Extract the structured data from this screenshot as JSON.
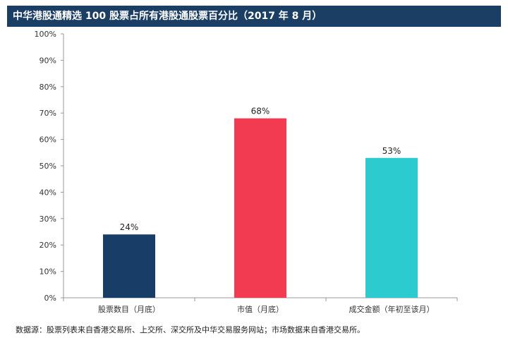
{
  "chart_data": {
    "type": "bar",
    "title": "中华港股通精选 100 股票占所有港股通股票百分比（2017 年 8 月）",
    "categories": [
      "股票数目（月底）",
      "市值（月底）",
      "成交金额（年初至该月）"
    ],
    "values": [
      24,
      68,
      53
    ],
    "value_labels": [
      "24%",
      "68%",
      "53%"
    ],
    "colors": [
      "#183d66",
      "#f23a50",
      "#2bcbd0"
    ],
    "yticks": [
      0,
      10,
      20,
      30,
      40,
      50,
      60,
      70,
      80,
      90,
      100
    ],
    "ytick_labels": [
      "0%",
      "10%",
      "20%",
      "30%",
      "40%",
      "50%",
      "60%",
      "70%",
      "80%",
      "90%",
      "100%"
    ],
    "ylim": [
      0,
      100
    ],
    "xlabel": "",
    "ylabel": "",
    "grid": false,
    "legend": "none"
  },
  "source_note": "数据源：股票列表来自香港交易所、上交所、深交所及中华交易服务网站；市场数据来自香港交易所。",
  "colors": {
    "title_bg": "#1a3e64",
    "axis": "#999999"
  }
}
